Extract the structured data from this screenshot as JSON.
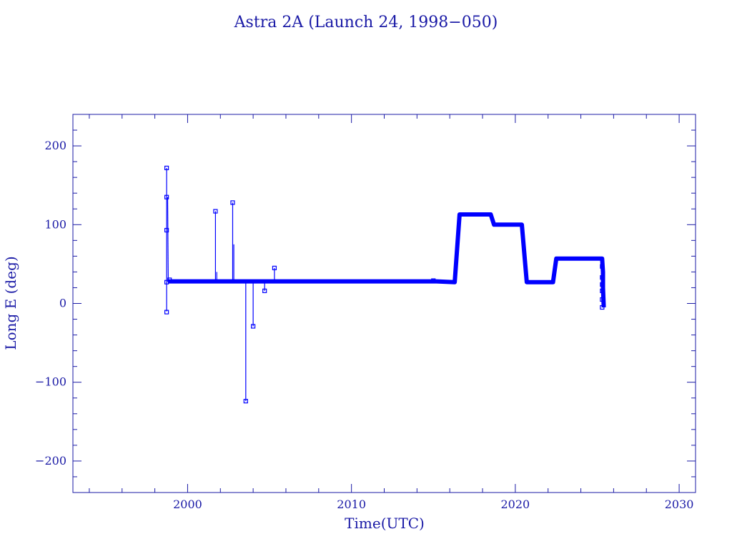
{
  "chart_data": {
    "type": "line",
    "title": "Astra 2A (Launch 24, 1998−050)",
    "xlabel": "Time(UTC)",
    "ylabel": "Long E (deg)",
    "xlim": [
      1993,
      2031
    ],
    "ylim": [
      -240,
      240
    ],
    "x_ticks": [
      2000,
      2010,
      2020,
      2030
    ],
    "x_tick_labels": [
      "2000",
      "2010",
      "2020",
      "2030"
    ],
    "y_ticks": [
      -200,
      -100,
      0,
      100,
      200
    ],
    "y_tick_labels": [
      "−200",
      "−100",
      "0",
      "100",
      "200"
    ],
    "grid": false,
    "colors": {
      "data": "#0000ff",
      "axes": "#1a1aa6",
      "text": "#1a1aa6"
    },
    "series": [
      {
        "style": "thin-line-with-square-markers",
        "segments": [
          [
            [
              1998.72,
              -10
            ],
            [
              1998.72,
              172
            ]
          ],
          [
            [
              1998.78,
              135
            ],
            [
              1998.82,
              28
            ]
          ],
          [
            [
              2001.7,
              28
            ],
            [
              2001.7,
              117
            ]
          ],
          [
            [
              2001.78,
              40
            ],
            [
              2001.78,
              28
            ]
          ],
          [
            [
              2002.75,
              28
            ],
            [
              2002.75,
              128
            ]
          ],
          [
            [
              2002.82,
              75
            ],
            [
              2002.82,
              28
            ]
          ],
          [
            [
              2003.55,
              28
            ],
            [
              2003.55,
              -124
            ]
          ],
          [
            [
              2004.0,
              28
            ],
            [
              2004.0,
              -29
            ]
          ],
          [
            [
              2004.7,
              28
            ],
            [
              2004.7,
              16
            ]
          ],
          [
            [
              2005.3,
              28
            ],
            [
              2005.3,
              45
            ]
          ]
        ],
        "markers": [
          [
            1998.72,
            172
          ],
          [
            1998.72,
            135
          ],
          [
            1998.72,
            93
          ],
          [
            1998.72,
            27
          ],
          [
            1998.72,
            -11
          ],
          [
            1998.9,
            30
          ],
          [
            2001.7,
            117
          ],
          [
            2002.75,
            128
          ],
          [
            2003.55,
            -124
          ],
          [
            2004.0,
            -29
          ],
          [
            2004.7,
            16
          ],
          [
            2005.3,
            45
          ],
          [
            2015.0,
            29
          ],
          [
            2025.3,
            47
          ],
          [
            2025.3,
            33
          ],
          [
            2025.3,
            24
          ],
          [
            2025.3,
            16
          ],
          [
            2025.3,
            5
          ],
          [
            2025.3,
            -5
          ]
        ]
      },
      {
        "style": "thick-line",
        "points": [
          [
            1998.8,
            28
          ],
          [
            2015.2,
            28
          ],
          [
            2016.3,
            27
          ],
          [
            2016.6,
            113
          ],
          [
            2018.5,
            113
          ],
          [
            2018.7,
            100
          ],
          [
            2020.4,
            100
          ],
          [
            2020.7,
            27
          ],
          [
            2022.3,
            27
          ],
          [
            2022.5,
            57
          ],
          [
            2025.3,
            57
          ],
          [
            2025.35,
            40
          ],
          [
            2025.35,
            20
          ],
          [
            2025.4,
            -5
          ]
        ]
      }
    ]
  }
}
